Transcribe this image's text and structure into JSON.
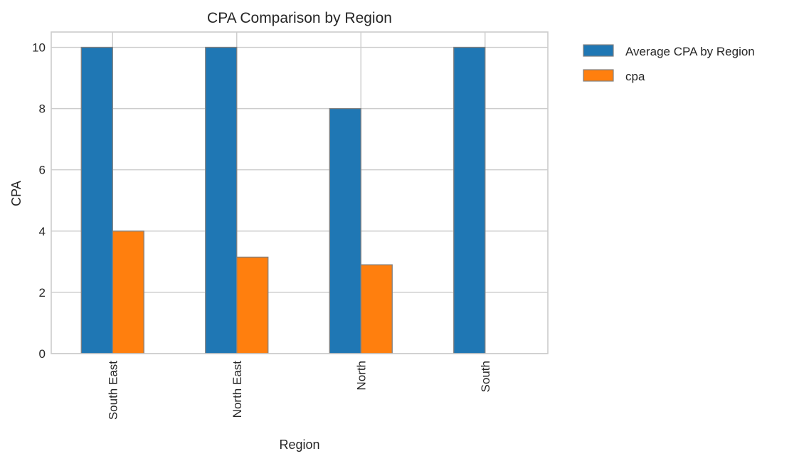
{
  "chart_data": {
    "type": "bar",
    "title": "CPA Comparison by Region",
    "xlabel": "Region",
    "ylabel": "CPA",
    "categories": [
      "South East",
      "North East",
      "North",
      "South"
    ],
    "series": [
      {
        "name": "Average CPA by Region",
        "values": [
          10,
          10,
          8,
          10
        ],
        "color": "#1f77b4"
      },
      {
        "name": "cpa",
        "values": [
          4.0,
          3.15,
          2.9,
          0
        ],
        "color": "#ff7f0e"
      }
    ],
    "ylim": [
      0,
      10.5
    ],
    "yticks": [
      0,
      2,
      4,
      6,
      8,
      10
    ],
    "grid": true,
    "legend_position": "outside-top-right",
    "bar_edge_color": "#808080",
    "grid_color": "#cccccc",
    "frame_color": "#cccccc"
  }
}
